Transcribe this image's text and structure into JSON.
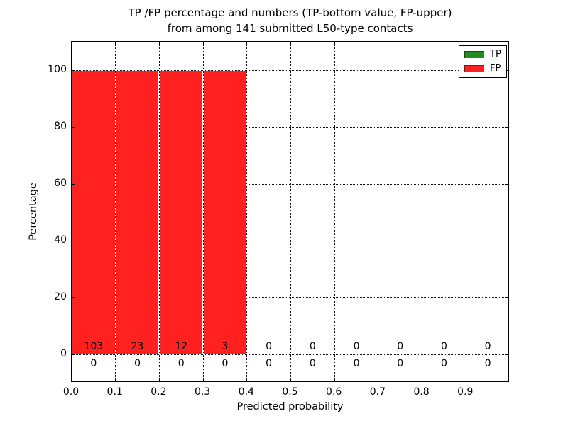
{
  "title": {
    "line1": "TP /FP percentage and numbers (TP-bottom value, FP-upper)",
    "line2": "from among 141 submitted L50-type contacts"
  },
  "axes": {
    "xlabel": "Predicted probability",
    "ylabel": "Percentage",
    "xtick_labels": [
      "0.0",
      "0.1",
      "0.2",
      "0.3",
      "0.4",
      "0.5",
      "0.6",
      "0.7",
      "0.8",
      "0.9"
    ],
    "ytick_labels": [
      "0",
      "20",
      "40",
      "60",
      "80",
      "100"
    ]
  },
  "legend": {
    "entries": [
      {
        "label": "TP",
        "color": "#228b22"
      },
      {
        "label": "FP",
        "color": "#ff2020"
      }
    ]
  },
  "chart_data": {
    "type": "bar",
    "stacked": true,
    "title": "TP /FP percentage and numbers (TP-bottom value, FP-upper) from among 141 submitted L50-type contacts",
    "xlabel": "Predicted probability",
    "ylabel": "Percentage",
    "total_submitted_contacts": 141,
    "contact_type": "L50",
    "bin_edges": [
      0.0,
      0.1,
      0.2,
      0.3,
      0.4,
      0.5,
      0.6,
      0.7,
      0.8,
      0.9,
      1.0
    ],
    "bin_centers": [
      0.05,
      0.15,
      0.25,
      0.35,
      0.45,
      0.55,
      0.65,
      0.75,
      0.85,
      0.95
    ],
    "series": [
      {
        "name": "TP",
        "color": "#228b22",
        "counts": [
          0,
          0,
          0,
          0,
          0,
          0,
          0,
          0,
          0,
          0
        ],
        "percentages": [
          0,
          0,
          0,
          0,
          0,
          0,
          0,
          0,
          0,
          0
        ]
      },
      {
        "name": "FP",
        "color": "#ff2020",
        "counts": [
          103,
          23,
          12,
          3,
          0,
          0,
          0,
          0,
          0,
          0
        ],
        "percentages": [
          100,
          100,
          100,
          100,
          0,
          0,
          0,
          0,
          0,
          0
        ]
      }
    ],
    "xticks": [
      0.0,
      0.1,
      0.2,
      0.3,
      0.4,
      0.5,
      0.6,
      0.7,
      0.8,
      0.9
    ],
    "yticks": [
      0,
      20,
      40,
      60,
      80,
      100
    ],
    "xlim": [
      0.0,
      1.0
    ],
    "ylim": [
      -10,
      110
    ],
    "grid": "dotted",
    "legend_position": "upper right"
  }
}
